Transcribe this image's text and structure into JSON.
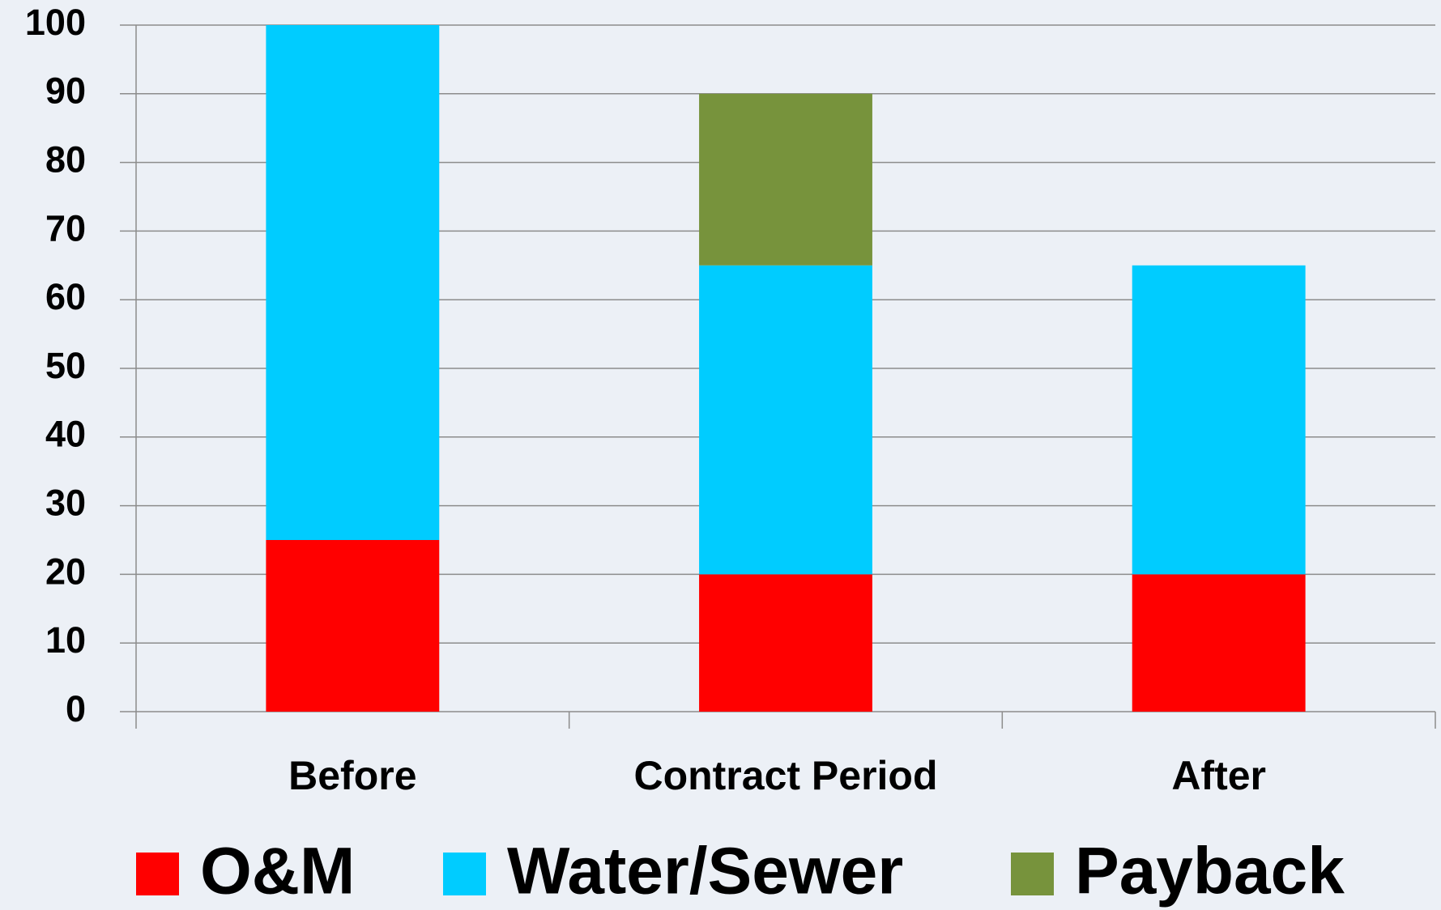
{
  "chart_data": {
    "type": "stacked_bar",
    "categories": [
      "Before",
      "Contract Period",
      "After"
    ],
    "series": [
      {
        "name": "O&M",
        "color": "#ff0000",
        "values": [
          25,
          20,
          20
        ]
      },
      {
        "name": "Water/Sewer",
        "color": "#00ccff",
        "values": [
          75,
          45,
          45
        ]
      },
      {
        "name": "Payback",
        "color": "#77933c",
        "values": [
          0,
          25,
          0
        ]
      }
    ],
    "ylim": [
      0,
      100
    ],
    "yticks": [
      0,
      10,
      20,
      30,
      40,
      50,
      60,
      70,
      80,
      90,
      100
    ],
    "grid": true,
    "legend": "bottom"
  }
}
